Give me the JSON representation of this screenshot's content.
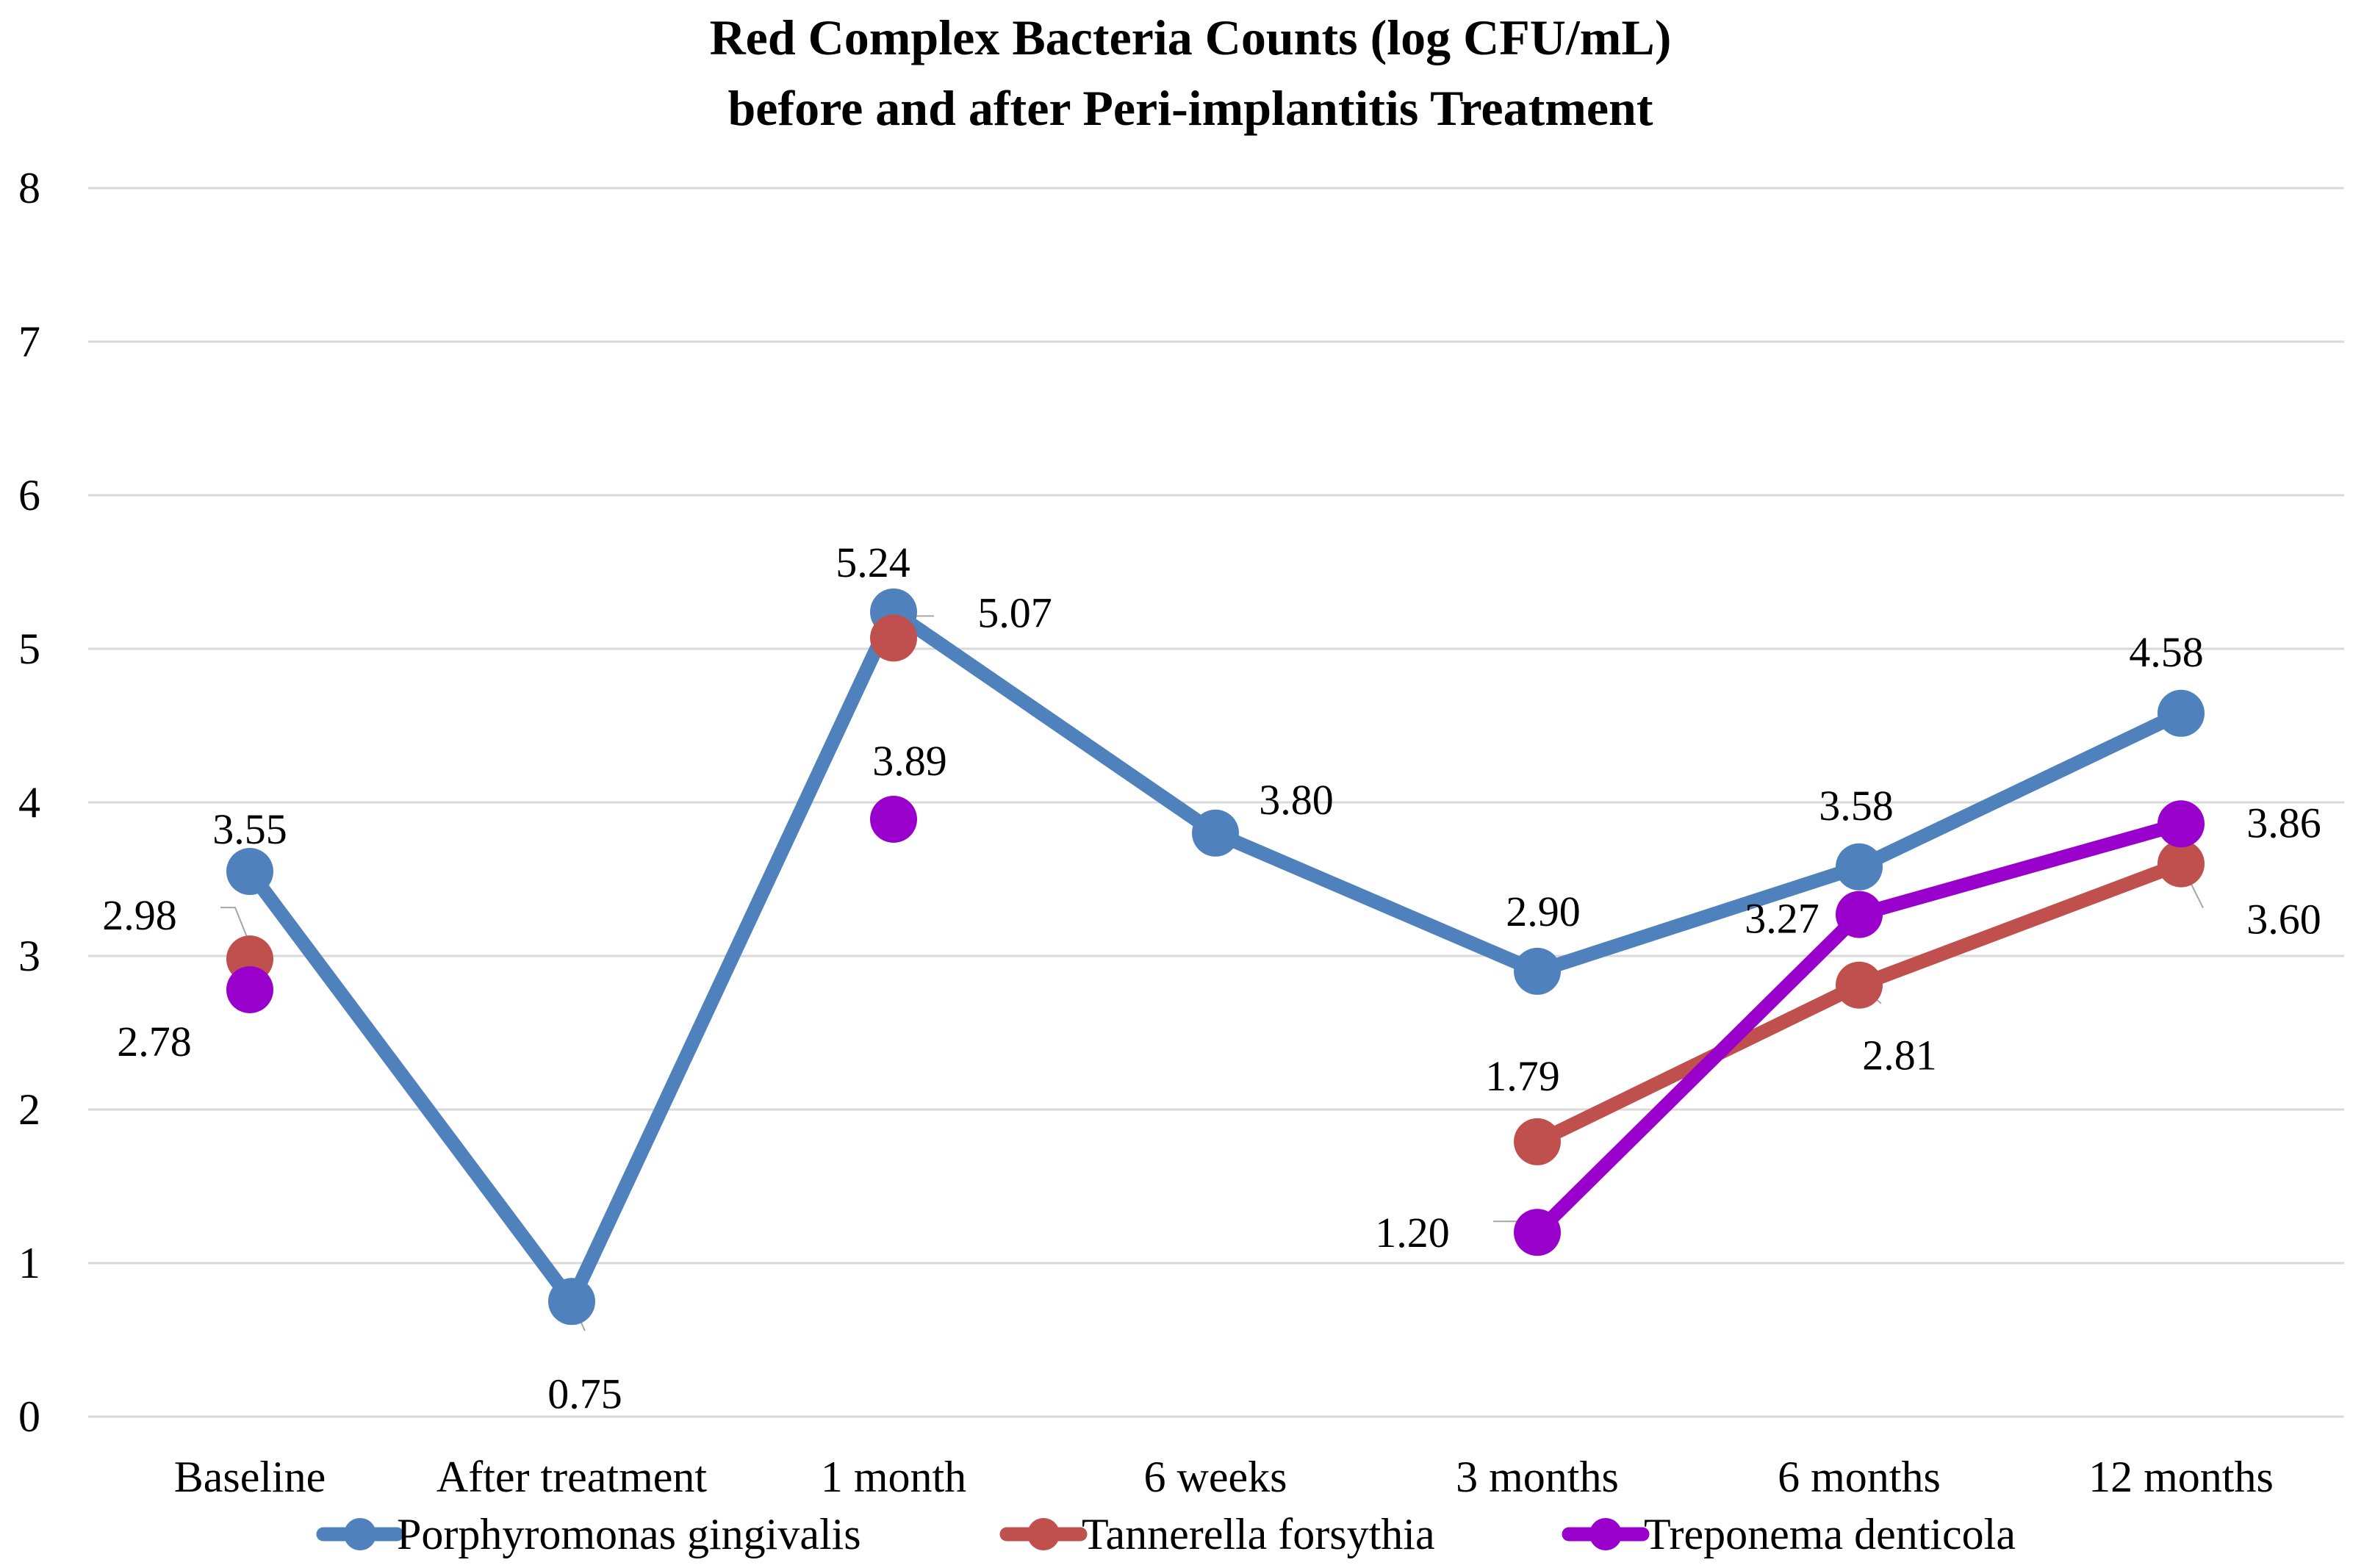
{
  "chart_data": {
    "type": "line",
    "title": "Red Complex Bacteria Counts (log CFU/mL)",
    "subtitle": "before and after Peri-implantitis Treatment",
    "xlabel": "",
    "ylabel": "",
    "ylim": [
      0,
      8
    ],
    "yticks": [
      0,
      1,
      2,
      3,
      4,
      5,
      6,
      7,
      8
    ],
    "grid": true,
    "legend_position": "bottom",
    "categories": [
      "Baseline",
      "After treatment",
      "1 month",
      "6 weeks",
      "3 months",
      "6 months",
      "12 months"
    ],
    "series": [
      {
        "name": "Porphyromonas gingivalis",
        "color": "#4f81bd",
        "values": [
          3.55,
          0.75,
          5.24,
          3.8,
          2.9,
          3.58,
          4.58
        ],
        "labels": [
          "3.55",
          "0.75",
          "5.24",
          "3.80",
          "2.90",
          "3.58",
          "4.58"
        ]
      },
      {
        "name": "Tannerella forsythia",
        "color": "#c0504d",
        "values": [
          2.98,
          null,
          5.07,
          null,
          1.79,
          2.81,
          3.6
        ],
        "labels": [
          "2.98",
          null,
          "5.07",
          null,
          "1.79",
          "2.81",
          "3.60"
        ]
      },
      {
        "name": "Treponema denticola",
        "color": "#9900cc",
        "values": [
          2.78,
          null,
          3.89,
          null,
          1.2,
          3.27,
          3.86
        ],
        "labels": [
          "2.78",
          null,
          "3.89",
          null,
          "1.20",
          "3.27",
          "3.86"
        ]
      }
    ]
  }
}
